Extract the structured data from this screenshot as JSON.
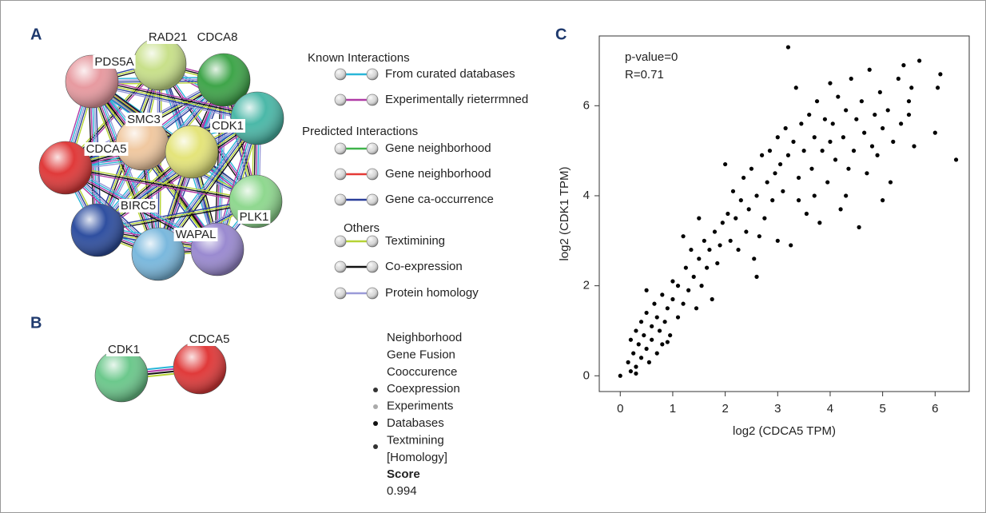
{
  "panel_a": {
    "label": "A",
    "nodes": [
      "RAD21",
      "CDCA8",
      "PDS5A",
      "SMC3",
      "CDK1",
      "CDCA5",
      "BIRC5",
      "WAPAL",
      "PLK1"
    ],
    "legend": {
      "groups": [
        {
          "title": "Known Interactions",
          "items": [
            {
              "label": "From curated databases",
              "color": "#29b6d8"
            },
            {
              "label": "Experimentally rieterrmned",
              "color": "#b03aa6"
            }
          ]
        },
        {
          "title": "Predicted Interactions",
          "items": [
            {
              "label": "Gene neighborhood",
              "color": "#3fb34a"
            },
            {
              "label": "Gene neighborhood",
              "color": "#e53935"
            },
            {
              "label": "Gene ca-occurrence",
              "color": "#2a3f9a"
            }
          ]
        },
        {
          "title": "Others",
          "items": [
            {
              "label": "Textimining",
              "color": "#b5d334"
            },
            {
              "label": "Co-expression",
              "color": "#111111"
            },
            {
              "label": "Protein homology",
              "color": "#9a9ad8"
            }
          ]
        }
      ]
    }
  },
  "panel_b": {
    "label": "B",
    "nodes": [
      "CDK1",
      "CDCA5"
    ],
    "evidence": [
      "Neighborhood",
      "Gene Fusion",
      "Cooccurence",
      "Coexpression",
      "Experiments",
      "Databases",
      "Textmining",
      "[Homology]"
    ],
    "score_label": "Score",
    "score": 0.994
  },
  "chart_data": {
    "type": "scatter",
    "panel_label": "C",
    "annotations": [
      "p-value=0",
      "R=0.71"
    ],
    "x_label": "log2 (CDCA5 TPM)",
    "y_label": "log2 (CDK1 TPM)",
    "color": "#000000",
    "xlim": [
      -0.4,
      6.65
    ],
    "ylim": [
      -0.35,
      7.55
    ],
    "xticks": [
      0,
      1,
      2,
      3,
      4,
      5,
      6
    ],
    "yticks": [
      0,
      2,
      4,
      6
    ],
    "x": [
      0,
      0.15,
      0.2,
      0.25,
      0.3,
      0.3,
      0.35,
      0.4,
      0.4,
      0.45,
      0.5,
      0.5,
      0.55,
      0.6,
      0.6,
      0.65,
      0.7,
      0.7,
      0.75,
      0.8,
      0.8,
      0.85,
      0.9,
      0.95,
      1.0,
      1.0,
      0.2,
      0.3,
      0.5,
      0.9,
      1.1,
      1.1,
      1.2,
      1.25,
      1.3,
      1.35,
      1.4,
      1.45,
      1.5,
      1.5,
      1.55,
      1.6,
      1.65,
      1.7,
      1.75,
      1.8,
      1.85,
      1.9,
      1.95,
      2.0,
      1.2,
      2.05,
      2.1,
      2.15,
      2.2,
      2.25,
      2.3,
      2.35,
      2.4,
      2.45,
      2.5,
      2.55,
      2.6,
      2.6,
      2.7,
      2.75,
      2.8,
      2.85,
      2.9,
      2.95,
      3.0,
      3.0,
      2.65,
      3.05,
      3.1,
      3.15,
      3.2,
      3.2,
      3.25,
      3.3,
      3.35,
      3.4,
      3.45,
      3.5,
      3.55,
      3.6,
      3.65,
      3.7,
      3.75,
      3.8,
      3.85,
      3.9,
      3.95,
      4.0,
      4.0,
      3.4,
      3.7,
      4.05,
      4.1,
      4.15,
      4.2,
      4.25,
      4.3,
      4.35,
      4.4,
      4.45,
      4.5,
      4.55,
      4.6,
      4.65,
      4.7,
      4.75,
      4.8,
      4.85,
      4.9,
      4.95,
      5.0,
      5.0,
      4.3,
      5.1,
      5.15,
      5.2,
      5.3,
      5.35,
      5.4,
      5.5,
      5.55,
      5.6,
      5.7,
      6.0,
      6.05,
      6.1,
      6.4,
      5.5
    ],
    "values": [
      0,
      0.3,
      0.8,
      0.5,
      1.0,
      0.2,
      0.7,
      1.2,
      0.4,
      0.9,
      0.6,
      1.4,
      0.3,
      1.1,
      0.8,
      1.6,
      0.5,
      1.3,
      1.0,
      1.8,
      0.7,
      1.2,
      1.5,
      0.9,
      1.7,
      2.1,
      0.1,
      0.05,
      1.9,
      0.75,
      1.3,
      2.0,
      1.6,
      2.4,
      1.9,
      2.8,
      2.2,
      1.5,
      2.6,
      3.5,
      2.0,
      3.0,
      2.4,
      2.8,
      1.7,
      3.2,
      2.5,
      2.9,
      3.4,
      4.7,
      3.1,
      3.6,
      3.0,
      4.1,
      3.5,
      2.8,
      3.9,
      4.4,
      3.2,
      3.7,
      4.6,
      2.6,
      2.2,
      4.0,
      4.9,
      3.5,
      4.3,
      5.0,
      3.9,
      4.5,
      5.3,
      3.0,
      3.1,
      4.7,
      4.1,
      5.5,
      7.3,
      4.9,
      2.9,
      5.2,
      6.4,
      4.4,
      5.6,
      5.0,
      3.6,
      5.8,
      4.6,
      5.3,
      6.1,
      3.4,
      5.0,
      5.7,
      4.3,
      6.5,
      5.2,
      3.9,
      4.0,
      5.6,
      4.8,
      6.2,
      3.7,
      5.3,
      5.9,
      4.6,
      6.6,
      5.0,
      5.7,
      3.3,
      6.1,
      5.4,
      4.5,
      6.8,
      5.1,
      5.8,
      4.9,
      6.3,
      3.9,
      5.5,
      4.0,
      5.9,
      4.3,
      5.2,
      6.6,
      5.6,
      6.9,
      5.8,
      6.4,
      5.1,
      7.0,
      5.4,
      6.4,
      6.7,
      4.8,
      6.1
    ]
  }
}
